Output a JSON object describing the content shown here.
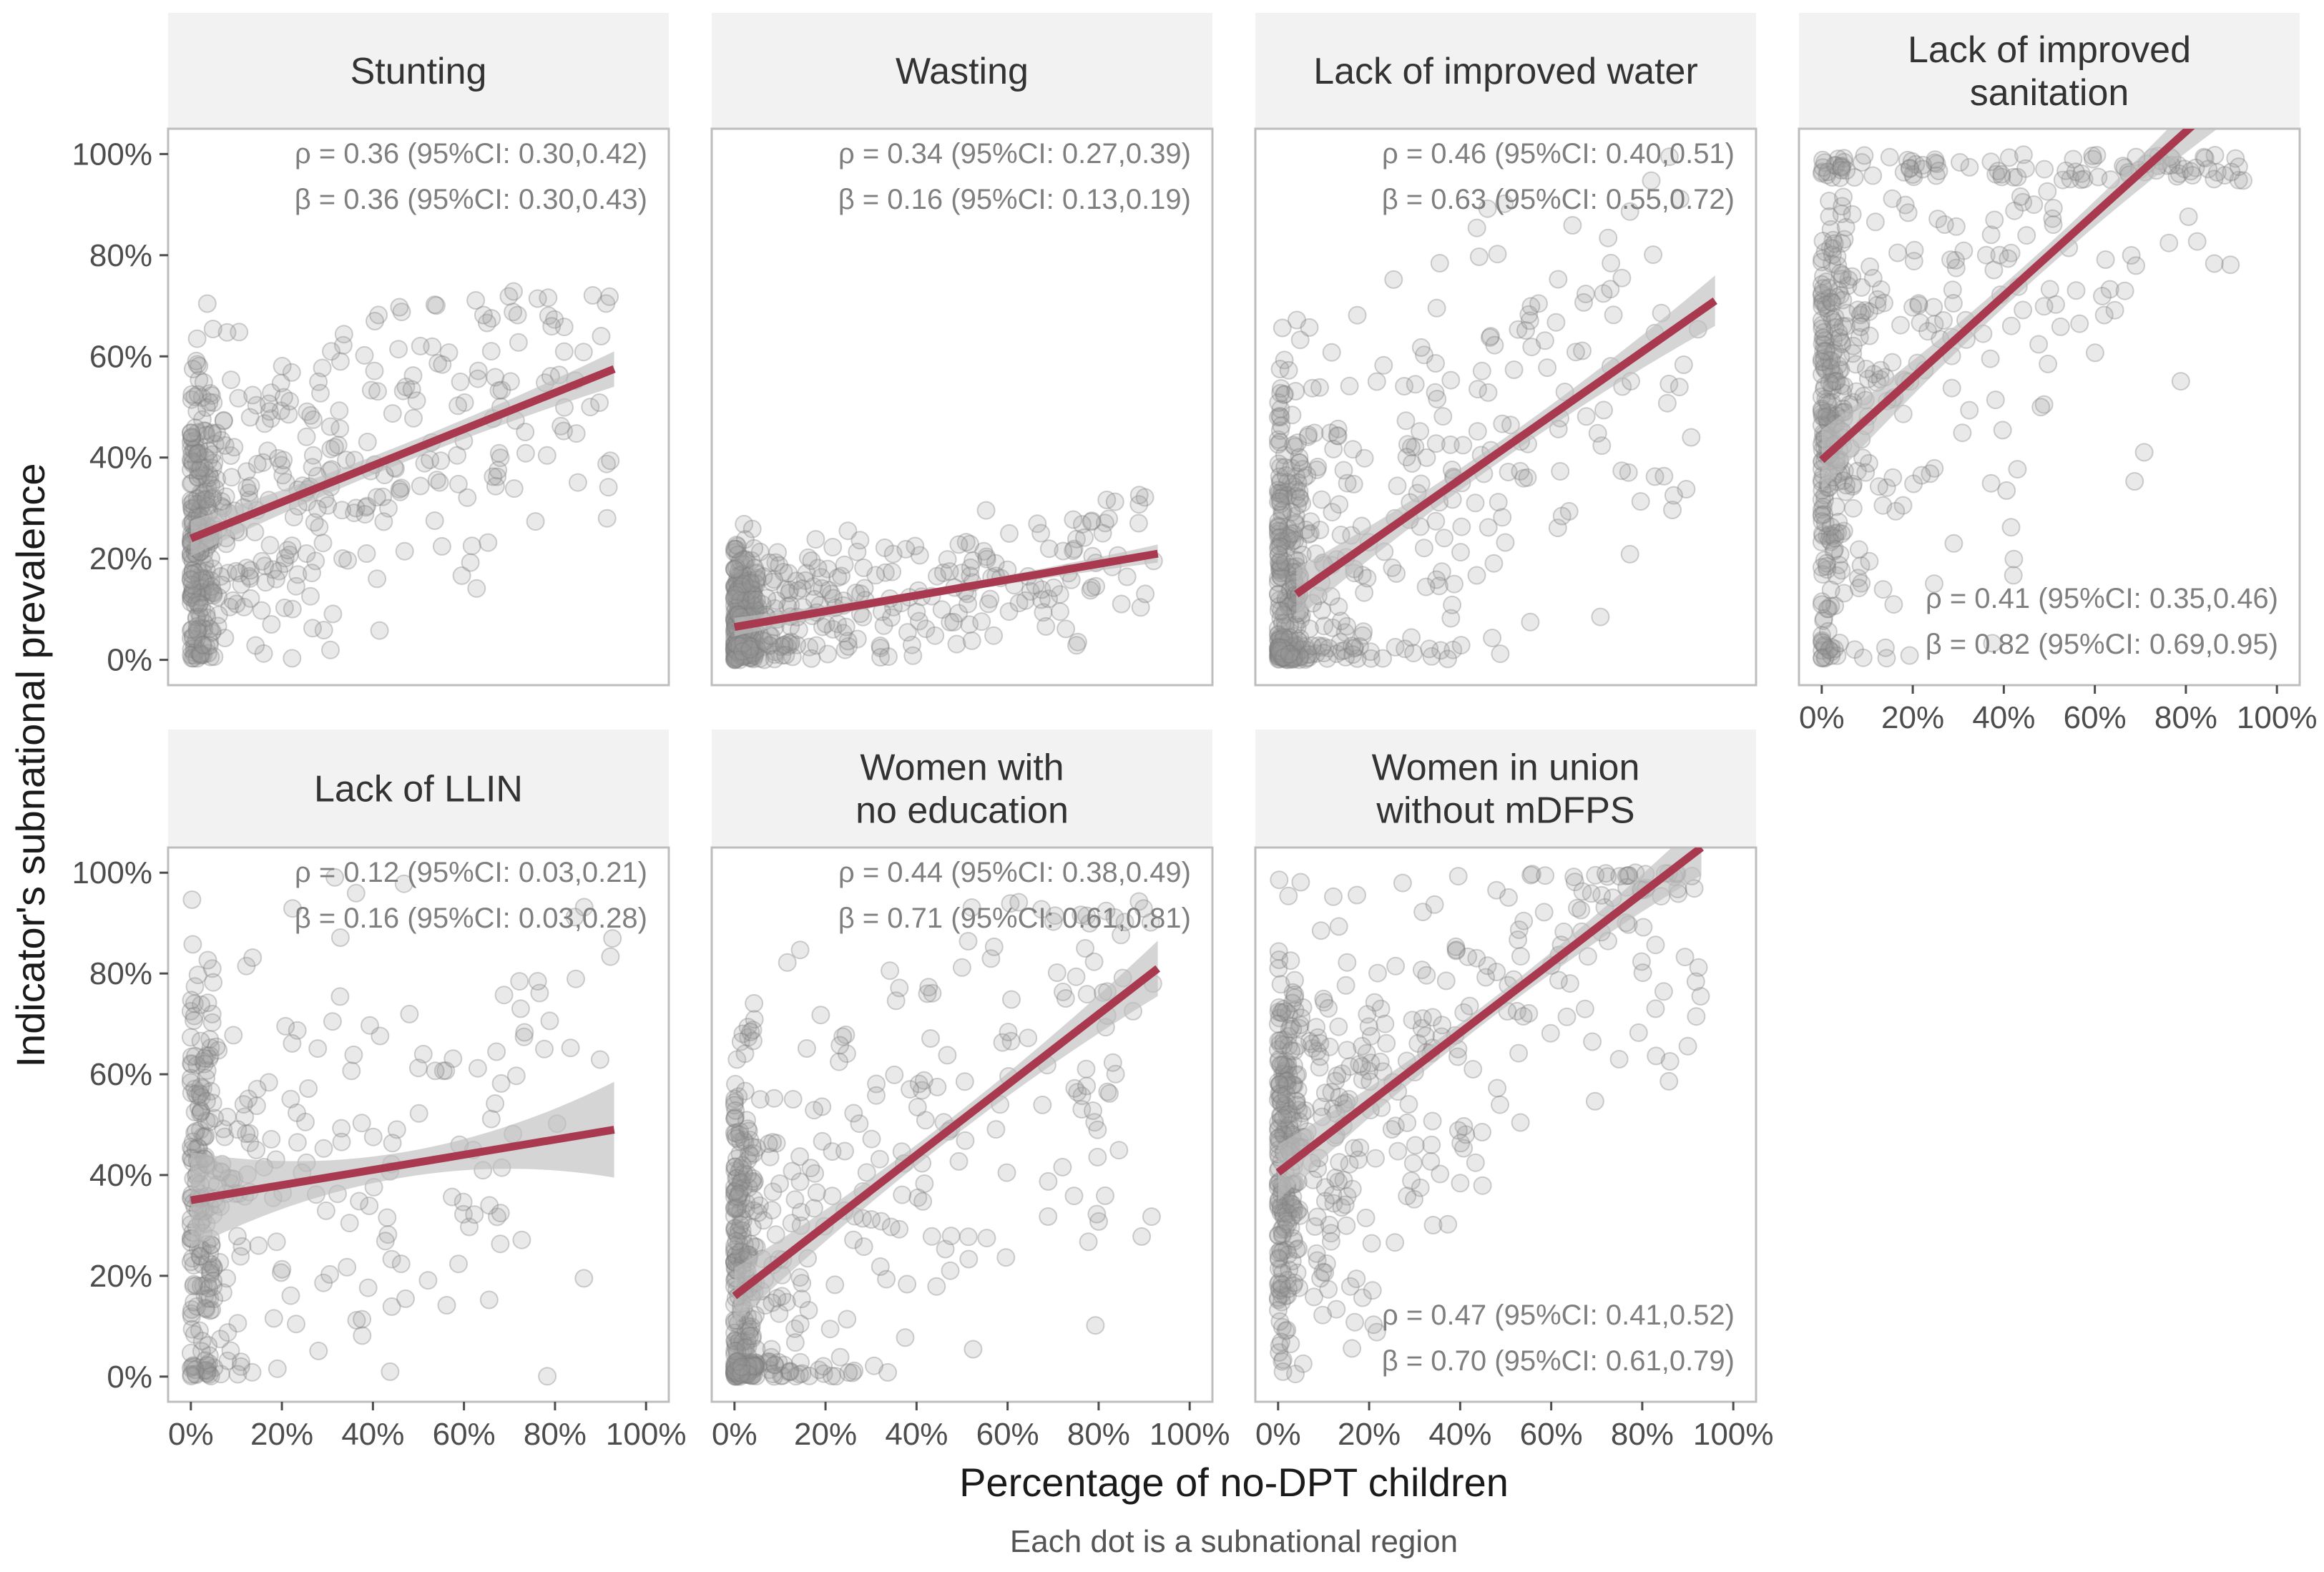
{
  "chart_data": {
    "type": "scatter",
    "xlabel": "Percentage of no-DPT children",
    "ylabel": "Indicator's subnational prevalence",
    "caption": "Each dot is a subnational region",
    "xlim": [
      -0.05,
      1.05
    ],
    "ylim": [
      -0.05,
      1.05
    ],
    "x_ticks": [
      "0%",
      "20%",
      "40%",
      "60%",
      "80%",
      "100%"
    ],
    "y_ticks": [
      "0%",
      "20%",
      "40%",
      "60%",
      "80%",
      "100%"
    ],
    "colors": {
      "line": "#a8394f",
      "band": "#bfbfbf",
      "dots": "#999999",
      "strip": "#f2f2f2"
    },
    "panels": [
      {
        "title_lines": [
          "Stunting"
        ],
        "rho": "ρ = 0.36 (95%CI: 0.30,0.42)",
        "beta": "β = 0.36 (95%CI: 0.30,0.43)",
        "stats_pos": "top-right",
        "fit": {
          "x0": 0.0,
          "y0": 0.24,
          "x1": 0.93,
          "y1": 0.575
        },
        "band": [
          0.018,
          0.035
        ],
        "cloud": {
          "seed": 11,
          "n": 520,
          "ymin": 0.0,
          "ymax": 0.73,
          "xy_mean": 0.24,
          "slope": 0.36,
          "noise": 0.16
        }
      },
      {
        "title_lines": [
          "Wasting"
        ],
        "rho": "ρ = 0.34 (95%CI: 0.27,0.39)",
        "beta": "β = 0.16 (95%CI: 0.13,0.19)",
        "stats_pos": "top-right",
        "fit": {
          "x0": 0.0,
          "y0": 0.065,
          "x1": 0.93,
          "y1": 0.21
        },
        "band": [
          0.008,
          0.018
        ],
        "cloud": {
          "seed": 23,
          "n": 480,
          "ymin": 0.0,
          "ymax": 0.47,
          "xy_mean": 0.07,
          "slope": 0.16,
          "noise": 0.07
        }
      },
      {
        "title_lines": [
          "Lack of improved water"
        ],
        "rho": "ρ = 0.46 (95%CI: 0.40,0.51)",
        "beta": "β = 0.63 (95%CI: 0.55,0.72)",
        "stats_pos": "top-right",
        "fit": {
          "x0": 0.04,
          "y0": 0.13,
          "x1": 0.96,
          "y1": 0.71
        },
        "band": [
          0.02,
          0.05
        ],
        "cloud": {
          "seed": 37,
          "n": 520,
          "ymin": 0.0,
          "ymax": 1.0,
          "xy_mean": 0.12,
          "slope": 0.63,
          "noise": 0.22
        }
      },
      {
        "title_lines": [
          "Lack of improved",
          "sanitation"
        ],
        "rho": "ρ = 0.41 (95%CI: 0.35,0.46)",
        "beta": "β = 0.82 (95%CI: 0.69,0.95)",
        "stats_pos": "bottom-right",
        "fit": {
          "x0": 0.0,
          "y0": 0.395,
          "x1": 0.93,
          "y1": 1.15
        },
        "band": [
          0.022,
          0.06
        ],
        "cloud": {
          "seed": 41,
          "n": 520,
          "ymin": 0.0,
          "ymax": 1.0,
          "xy_mean": 0.45,
          "slope": 0.82,
          "noise": 0.28
        }
      },
      {
        "title_lines": [
          "Lack of LLIN"
        ],
        "rho": "ρ = 0.12 (95%CI: 0.03,0.21)",
        "beta": "β = 0.16 (95%CI: 0.03,0.28)",
        "stats_pos": "top-right",
        "fit": {
          "x0": 0.0,
          "y0": 0.35,
          "x1": 0.93,
          "y1": 0.49
        },
        "band": [
          0.025,
          0.095
        ],
        "cloud": {
          "seed": 53,
          "n": 360,
          "ymin": 0.0,
          "ymax": 1.0,
          "xy_mean": 0.35,
          "slope": 0.16,
          "noise": 0.24
        }
      },
      {
        "title_lines": [
          "Women with",
          "no education"
        ],
        "rho": "ρ = 0.44 (95%CI: 0.38,0.49)",
        "beta": "β = 0.71 (95%CI: 0.61,0.81)",
        "stats_pos": "top-right",
        "fit": {
          "x0": 0.0,
          "y0": 0.16,
          "x1": 0.93,
          "y1": 0.81
        },
        "band": [
          0.02,
          0.055
        ],
        "cloud": {
          "seed": 67,
          "n": 500,
          "ymin": 0.0,
          "ymax": 0.95,
          "xy_mean": 0.16,
          "slope": 0.71,
          "noise": 0.24
        }
      },
      {
        "title_lines": [
          "Women in union",
          "without mDFPS"
        ],
        "rho": "ρ = 0.47 (95%CI: 0.41,0.52)",
        "beta": "β = 0.70 (95%CI: 0.61,0.79)",
        "stats_pos": "bottom-right",
        "fit": {
          "x0": 0.0,
          "y0": 0.405,
          "x1": 0.93,
          "y1": 1.05
        },
        "band": [
          0.018,
          0.055
        ],
        "cloud": {
          "seed": 79,
          "n": 500,
          "ymin": 0.0,
          "ymax": 1.0,
          "xy_mean": 0.42,
          "slope": 0.7,
          "noise": 0.2
        }
      }
    ]
  }
}
